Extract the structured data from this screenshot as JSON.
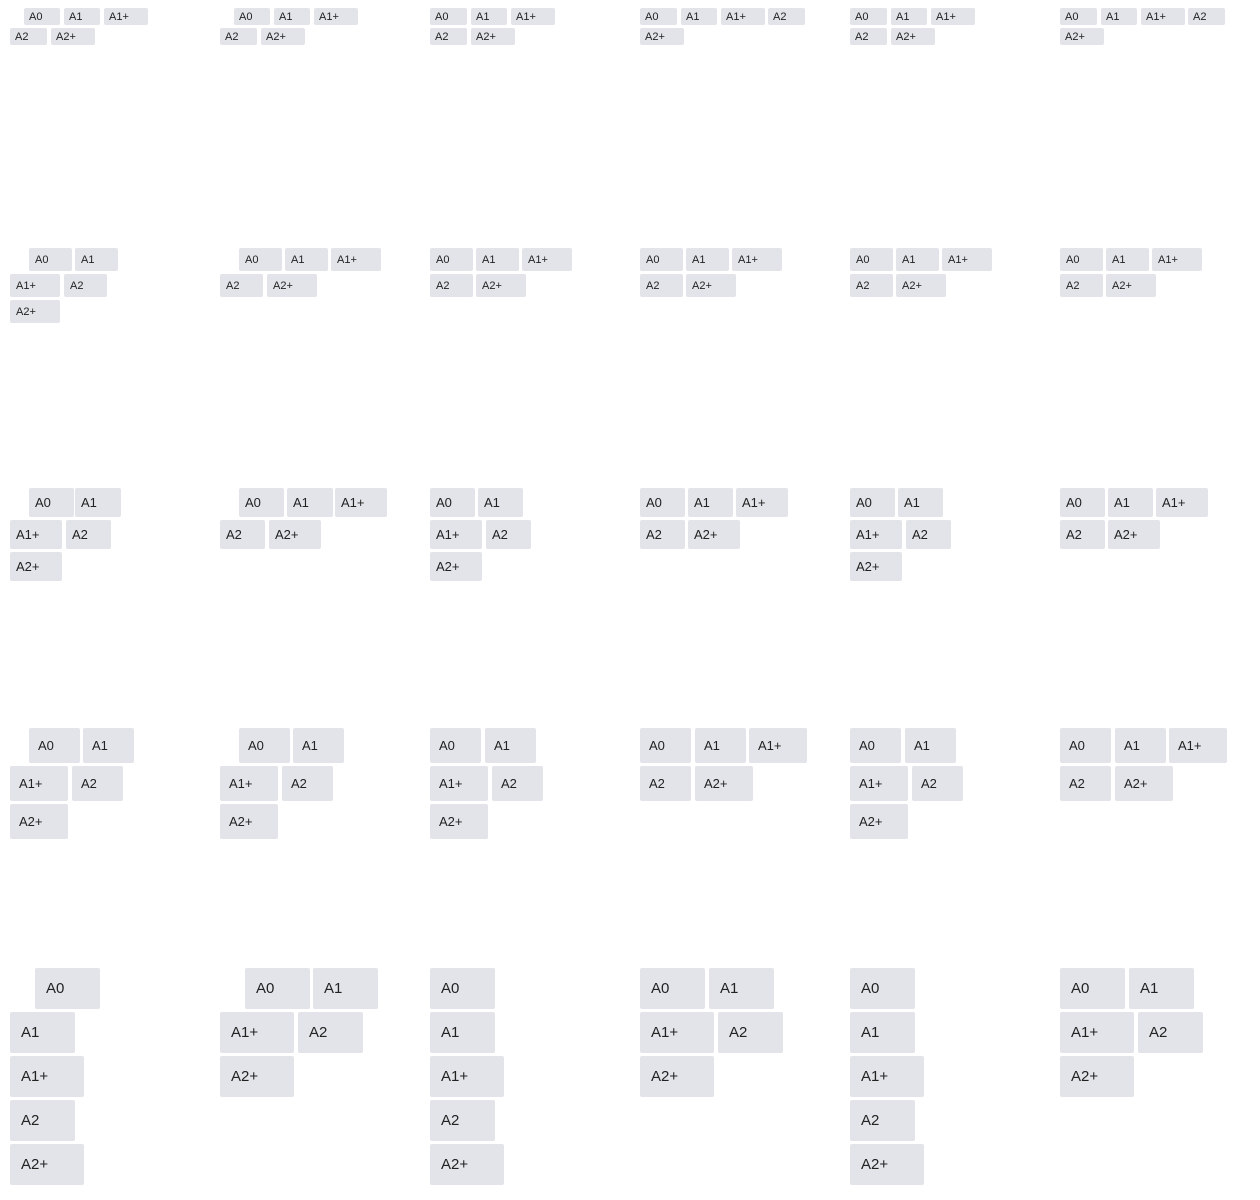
{
  "grid": {
    "rows": [
      [
        {
          "tags": [
            "A0",
            "A1",
            "A1+",
            "A2",
            "A2+"
          ]
        },
        {
          "tags": [
            "A0",
            "A1",
            "A1+",
            "A2",
            "A2+"
          ]
        },
        {
          "tags": [
            "A0",
            "A1",
            "A1+",
            "A2",
            "A2+"
          ]
        },
        {
          "tags": [
            "A0",
            "A1",
            "A1+",
            "A2",
            "A2+"
          ]
        },
        {
          "tags": [
            "A0",
            "A1",
            "A1+",
            "A2",
            "A2+"
          ]
        },
        {
          "tags": [
            "A0",
            "A1",
            "A1+",
            "A2",
            "A2+"
          ]
        }
      ],
      [
        {
          "tags": [
            "A0",
            "A1",
            "A1+",
            "A2",
            "A2+"
          ]
        },
        {
          "tags": [
            "A0",
            "A1",
            "A1+",
            "A2",
            "A2+"
          ]
        },
        {
          "tags": [
            "A0",
            "A1",
            "A1+",
            "A2",
            "A2+"
          ]
        },
        {
          "tags": [
            "A0",
            "A1",
            "A1+",
            "A2",
            "A2+"
          ]
        },
        {
          "tags": [
            "A0",
            "A1",
            "A1+",
            "A2",
            "A2+"
          ]
        },
        {
          "tags": [
            "A0",
            "A1",
            "A1+",
            "A2",
            "A2+"
          ]
        }
      ],
      [
        {
          "tags": [
            "A0",
            "A1",
            "A1+",
            "A2",
            "A2+"
          ]
        },
        {
          "tags": [
            "A0",
            "A1",
            "A1+",
            "A2",
            "A2+"
          ]
        },
        {
          "tags": [
            "A0",
            "A1",
            "A1+",
            "A2",
            "A2+"
          ]
        },
        {
          "tags": [
            "A0",
            "A1",
            "A1+",
            "A2",
            "A2+"
          ]
        },
        {
          "tags": [
            "A0",
            "A1",
            "A1+",
            "A2",
            "A2+"
          ]
        },
        {
          "tags": [
            "A0",
            "A1",
            "A1+",
            "A2",
            "A2+"
          ]
        }
      ],
      [
        {
          "tags": [
            "A0",
            "A1",
            "A1+",
            "A2",
            "A2+"
          ]
        },
        {
          "tags": [
            "A0",
            "A1",
            "A1+",
            "A2",
            "A2+"
          ]
        },
        {
          "tags": [
            "A0",
            "A1",
            "A1+",
            "A2",
            "A2+"
          ]
        },
        {
          "tags": [
            "A0",
            "A1",
            "A1+",
            "A2",
            "A2+"
          ]
        },
        {
          "tags": [
            "A0",
            "A1",
            "A1+",
            "A2",
            "A2+"
          ]
        },
        {
          "tags": [
            "A0",
            "A1",
            "A1+",
            "A2",
            "A2+"
          ]
        }
      ],
      [
        {
          "tags": [
            "A0",
            "A1",
            "A1+",
            "A2",
            "A2+"
          ]
        },
        {
          "tags": [
            "A0",
            "A1",
            "A1+",
            "A2",
            "A2+"
          ]
        },
        {
          "tags": [
            "A0",
            "A1",
            "A1+",
            "A2",
            "A2+"
          ]
        },
        {
          "tags": [
            "A0",
            "A1",
            "A1+",
            "A2",
            "A2+"
          ]
        },
        {
          "tags": [
            "A0",
            "A1",
            "A1+",
            "A2",
            "A2+"
          ]
        },
        {
          "tags": [
            "A0",
            "A1",
            "A1+",
            "A2",
            "A2+"
          ]
        }
      ]
    ]
  }
}
